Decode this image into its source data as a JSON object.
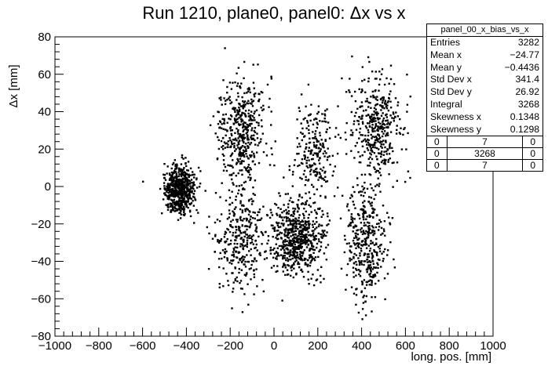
{
  "chart_data": {
    "type": "scatter",
    "title": "Run 1210, plane0, panel0: Δx vs x",
    "xlabel": "long. pos. [mm]",
    "ylabel": "Δx [mm]",
    "xlim": [
      -1000,
      1000
    ],
    "ylim": [
      -80,
      80
    ],
    "x_ticks": [
      -1000,
      -800,
      -600,
      -400,
      -200,
      0,
      200,
      400,
      600,
      800,
      1000
    ],
    "x_tick_labels": [
      "−1000",
      "−800",
      "−600",
      "−400",
      "−200",
      "0",
      "200",
      "400",
      "600",
      "800",
      "1000"
    ],
    "y_ticks": [
      -80,
      -60,
      -40,
      -20,
      0,
      20,
      40,
      60,
      80
    ],
    "y_tick_labels": [
      "−80",
      "−60",
      "−40",
      "−20",
      "0",
      "20",
      "40",
      "60",
      "80"
    ],
    "grid": false,
    "marker_color": "#000000",
    "clusters": [
      {
        "x_center": -430,
        "x_sd": 35,
        "y_center": -2,
        "y_sd": 6,
        "count": 600
      },
      {
        "x_center": -150,
        "x_sd": 55,
        "y_center": 30,
        "y_sd": 14,
        "count": 450
      },
      {
        "x_center": -150,
        "x_sd": 55,
        "y_center": -28,
        "y_sd": 14,
        "count": 330
      },
      {
        "x_center": 105,
        "x_sd": 60,
        "y_center": -27,
        "y_sd": 10,
        "count": 620
      },
      {
        "x_center": 190,
        "x_sd": 45,
        "y_center": 20,
        "y_sd": 12,
        "count": 220
      },
      {
        "x_center": 470,
        "x_sd": 55,
        "y_center": 30,
        "y_sd": 14,
        "count": 400
      },
      {
        "x_center": 420,
        "x_sd": 45,
        "y_center": -30,
        "y_sd": 16,
        "count": 380
      }
    ],
    "stats": {
      "name": "panel_00_x_bias_vs_x",
      "rows": [
        {
          "label": "Entries",
          "value": "3282"
        },
        {
          "label": "Mean x",
          "value": "−24.77"
        },
        {
          "label": "Mean y",
          "value": "−0.4436"
        },
        {
          "label": "Std Dev x",
          "value": "341.4"
        },
        {
          "label": "Std Dev y",
          "value": "26.92"
        },
        {
          "label": "Integral",
          "value": "3268"
        },
        {
          "label": "Skewness x",
          "value": "0.1348"
        },
        {
          "label": "Skewness y",
          "value": "0.1298"
        }
      ],
      "grid": [
        [
          "0",
          "7",
          "0"
        ],
        [
          "0",
          "3268",
          "0"
        ],
        [
          "0",
          "7",
          "0"
        ]
      ]
    }
  }
}
